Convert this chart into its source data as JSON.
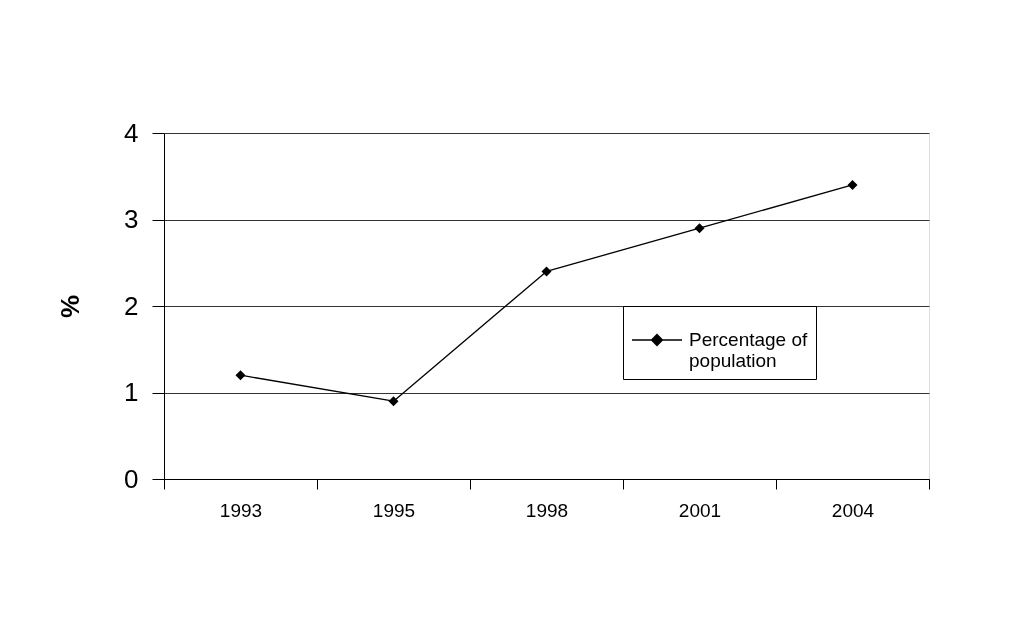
{
  "chart_data": {
    "type": "line",
    "categories": [
      "1993",
      "1995",
      "1998",
      "2001",
      "2004"
    ],
    "series": [
      {
        "name": "Percentage of population",
        "color": "#000000",
        "values": [
          1.2,
          0.9,
          2.4,
          2.9,
          3.4
        ]
      }
    ],
    "ylabel": "%",
    "ylim": [
      0,
      4
    ],
    "yticks": [
      0,
      1,
      2,
      3,
      4
    ],
    "grid": "y",
    "legend": "right",
    "marker": "diamond",
    "line_style": "solid"
  }
}
